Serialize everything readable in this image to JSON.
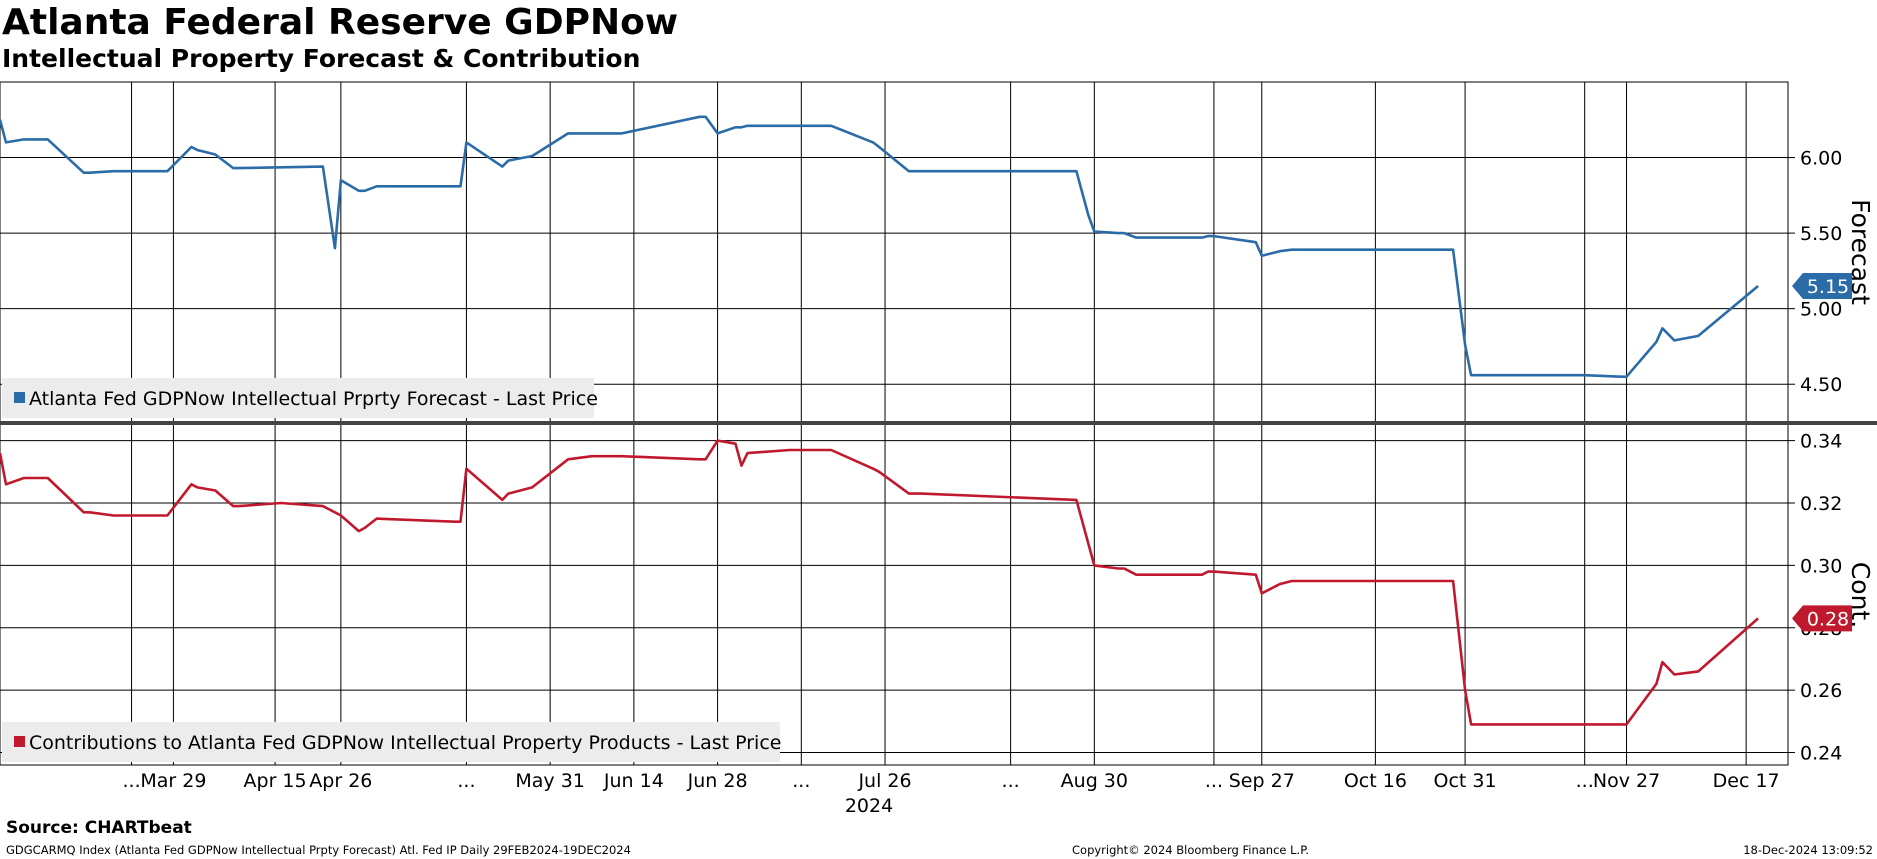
{
  "header": {
    "title": "Atlanta Federal Reserve GDPNow",
    "subtitle": "Intellectual Property Forecast & Contribution"
  },
  "footer": {
    "source": "Source: CHARTbeat",
    "ticker": "GDGCARMQ Index (Atlanta Fed GDPNow Intellectual Prpty Forecast) Atl. Fed IP  Daily 29FEB2024-19DEC2024",
    "copyright": "Copyright© 2024 Bloomberg Finance L.P.",
    "timestamp": "18-Dec-2024 13:09:52"
  },
  "chart_data": [
    {
      "type": "line",
      "name": "forecast-panel",
      "ylabel": "Forecast",
      "ylim": [
        4.25,
        6.5
      ],
      "yticks": [
        4.5,
        5.0,
        5.5,
        6.0
      ],
      "ytick_labels": [
        "4.50",
        "5.00",
        "5.50",
        "6.00"
      ],
      "color": "#2b6ca8",
      "legend": "Atlanta Fed GDPNow Intellectual Prprty Forecast - Last Price",
      "last_value_label": "5.15",
      "last_value": 5.15,
      "x": [
        "2024-02-29",
        "2024-03-01",
        "2024-03-04",
        "2024-03-07",
        "2024-03-08",
        "2024-03-14",
        "2024-03-15",
        "2024-03-19",
        "2024-03-25",
        "2024-03-28",
        "2024-04-01",
        "2024-04-02",
        "2024-04-05",
        "2024-04-08",
        "2024-04-09",
        "2024-04-23",
        "2024-04-25",
        "2024-04-26",
        "2024-04-29",
        "2024-04-30",
        "2024-05-02",
        "2024-05-15",
        "2024-05-16",
        "2024-05-17",
        "2024-05-23",
        "2024-05-24",
        "2024-05-28",
        "2024-06-03",
        "2024-06-07",
        "2024-06-12",
        "2024-06-25",
        "2024-06-26",
        "2024-06-28",
        "2024-07-01",
        "2024-07-02",
        "2024-07-03",
        "2024-07-10",
        "2024-07-17",
        "2024-07-24",
        "2024-07-25",
        "2024-07-30",
        "2024-08-01",
        "2024-08-27",
        "2024-08-29",
        "2024-08-30",
        "2024-09-03",
        "2024-09-04",
        "2024-09-06",
        "2024-09-17",
        "2024-09-18",
        "2024-09-19",
        "2024-09-26",
        "2024-09-27",
        "2024-09-30",
        "2024-10-02",
        "2024-10-08",
        "2024-10-29",
        "2024-10-31",
        "2024-11-01",
        "2024-11-20",
        "2024-11-26",
        "2024-11-27",
        "2024-12-02",
        "2024-12-03",
        "2024-12-05",
        "2024-12-09",
        "2024-12-19"
      ],
      "values": [
        6.25,
        6.1,
        6.12,
        6.12,
        6.12,
        5.9,
        5.9,
        5.91,
        5.91,
        5.91,
        6.07,
        6.05,
        6.02,
        5.93,
        5.93,
        5.94,
        5.4,
        5.85,
        5.78,
        5.78,
        5.81,
        5.81,
        5.81,
        6.1,
        5.94,
        5.98,
        6.01,
        6.16,
        6.16,
        6.16,
        6.27,
        6.27,
        6.16,
        6.2,
        6.2,
        6.21,
        6.21,
        6.21,
        6.1,
        6.07,
        5.91,
        5.91,
        5.91,
        5.62,
        5.51,
        5.5,
        5.5,
        5.47,
        5.47,
        5.48,
        5.48,
        5.44,
        5.35,
        5.38,
        5.39,
        5.39,
        5.39,
        4.76,
        4.56,
        4.56,
        4.55,
        4.55,
        4.78,
        4.87,
        4.79,
        4.82,
        5.15
      ]
    },
    {
      "type": "line",
      "name": "contribution-panel",
      "ylabel": "Cont.",
      "ylim": [
        0.236,
        0.345
      ],
      "yticks": [
        0.24,
        0.26,
        0.28,
        0.3,
        0.32,
        0.34
      ],
      "ytick_labels": [
        "0.24",
        "0.26",
        "0.28",
        "0.30",
        "0.32",
        "0.34"
      ],
      "color": "#c0192e",
      "legend": "Contributions to Atlanta Fed GDPNow Intellectual Property Products - Last Price",
      "last_value_label": "0.28",
      "last_value": 0.283,
      "x": [
        "2024-02-29",
        "2024-03-01",
        "2024-03-04",
        "2024-03-07",
        "2024-03-08",
        "2024-03-14",
        "2024-03-15",
        "2024-03-19",
        "2024-03-25",
        "2024-03-28",
        "2024-04-01",
        "2024-04-02",
        "2024-04-05",
        "2024-04-08",
        "2024-04-09",
        "2024-04-16",
        "2024-04-23",
        "2024-04-25",
        "2024-04-26",
        "2024-04-29",
        "2024-04-30",
        "2024-05-02",
        "2024-05-15",
        "2024-05-16",
        "2024-05-17",
        "2024-05-23",
        "2024-05-24",
        "2024-05-28",
        "2024-06-03",
        "2024-06-07",
        "2024-06-12",
        "2024-06-25",
        "2024-06-26",
        "2024-06-28",
        "2024-07-01",
        "2024-07-02",
        "2024-07-03",
        "2024-07-10",
        "2024-07-17",
        "2024-07-24",
        "2024-07-25",
        "2024-07-30",
        "2024-08-01",
        "2024-08-27",
        "2024-08-29",
        "2024-08-30",
        "2024-09-03",
        "2024-09-04",
        "2024-09-06",
        "2024-09-17",
        "2024-09-18",
        "2024-09-19",
        "2024-09-26",
        "2024-09-27",
        "2024-09-30",
        "2024-10-02",
        "2024-10-08",
        "2024-10-29",
        "2024-10-31",
        "2024-11-01",
        "2024-11-20",
        "2024-11-26",
        "2024-11-27",
        "2024-12-02",
        "2024-12-03",
        "2024-12-05",
        "2024-12-09",
        "2024-12-19"
      ],
      "values": [
        0.336,
        0.326,
        0.328,
        0.328,
        0.328,
        0.317,
        0.317,
        0.316,
        0.316,
        0.316,
        0.326,
        0.325,
        0.324,
        0.319,
        0.319,
        0.32,
        0.319,
        0.317,
        0.316,
        0.311,
        0.312,
        0.315,
        0.314,
        0.314,
        0.331,
        0.321,
        0.323,
        0.325,
        0.334,
        0.335,
        0.335,
        0.334,
        0.334,
        0.34,
        0.339,
        0.332,
        0.336,
        0.337,
        0.337,
        0.331,
        0.33,
        0.323,
        0.323,
        0.321,
        0.307,
        0.3,
        0.299,
        0.299,
        0.297,
        0.297,
        0.298,
        0.298,
        0.297,
        0.291,
        0.294,
        0.295,
        0.295,
        0.295,
        0.26,
        0.249,
        0.249,
        0.249,
        0.249,
        0.262,
        0.269,
        0.265,
        0.266,
        0.283
      ]
    }
  ],
  "x_axis": {
    "range": [
      "2024-02-29",
      "2024-12-24"
    ],
    "ticks": [
      {
        "date": "2024-03-22",
        "label": "..."
      },
      {
        "date": "2024-03-29",
        "label": "Mar 29"
      },
      {
        "date": "2024-04-15",
        "label": "Apr 15"
      },
      {
        "date": "2024-04-26",
        "label": "Apr 26"
      },
      {
        "date": "2024-05-17",
        "label": "..."
      },
      {
        "date": "2024-05-31",
        "label": "May 31"
      },
      {
        "date": "2024-06-14",
        "label": "Jun 14"
      },
      {
        "date": "2024-06-28",
        "label": "Jun 28"
      },
      {
        "date": "2024-07-12",
        "label": "..."
      },
      {
        "date": "2024-07-26",
        "label": "Jul 26"
      },
      {
        "date": "2024-08-16",
        "label": "..."
      },
      {
        "date": "2024-08-30",
        "label": "Aug 30"
      },
      {
        "date": "2024-09-19",
        "label": "..."
      },
      {
        "date": "2024-09-27",
        "label": "Sep 27"
      },
      {
        "date": "2024-10-16",
        "label": "Oct 16"
      },
      {
        "date": "2024-10-31",
        "label": "Oct 31"
      },
      {
        "date": "2024-11-20",
        "label": "..."
      },
      {
        "date": "2024-11-27",
        "label": "Nov 27"
      },
      {
        "date": "2024-12-17",
        "label": "Dec 17"
      }
    ],
    "year_label": "2024"
  }
}
